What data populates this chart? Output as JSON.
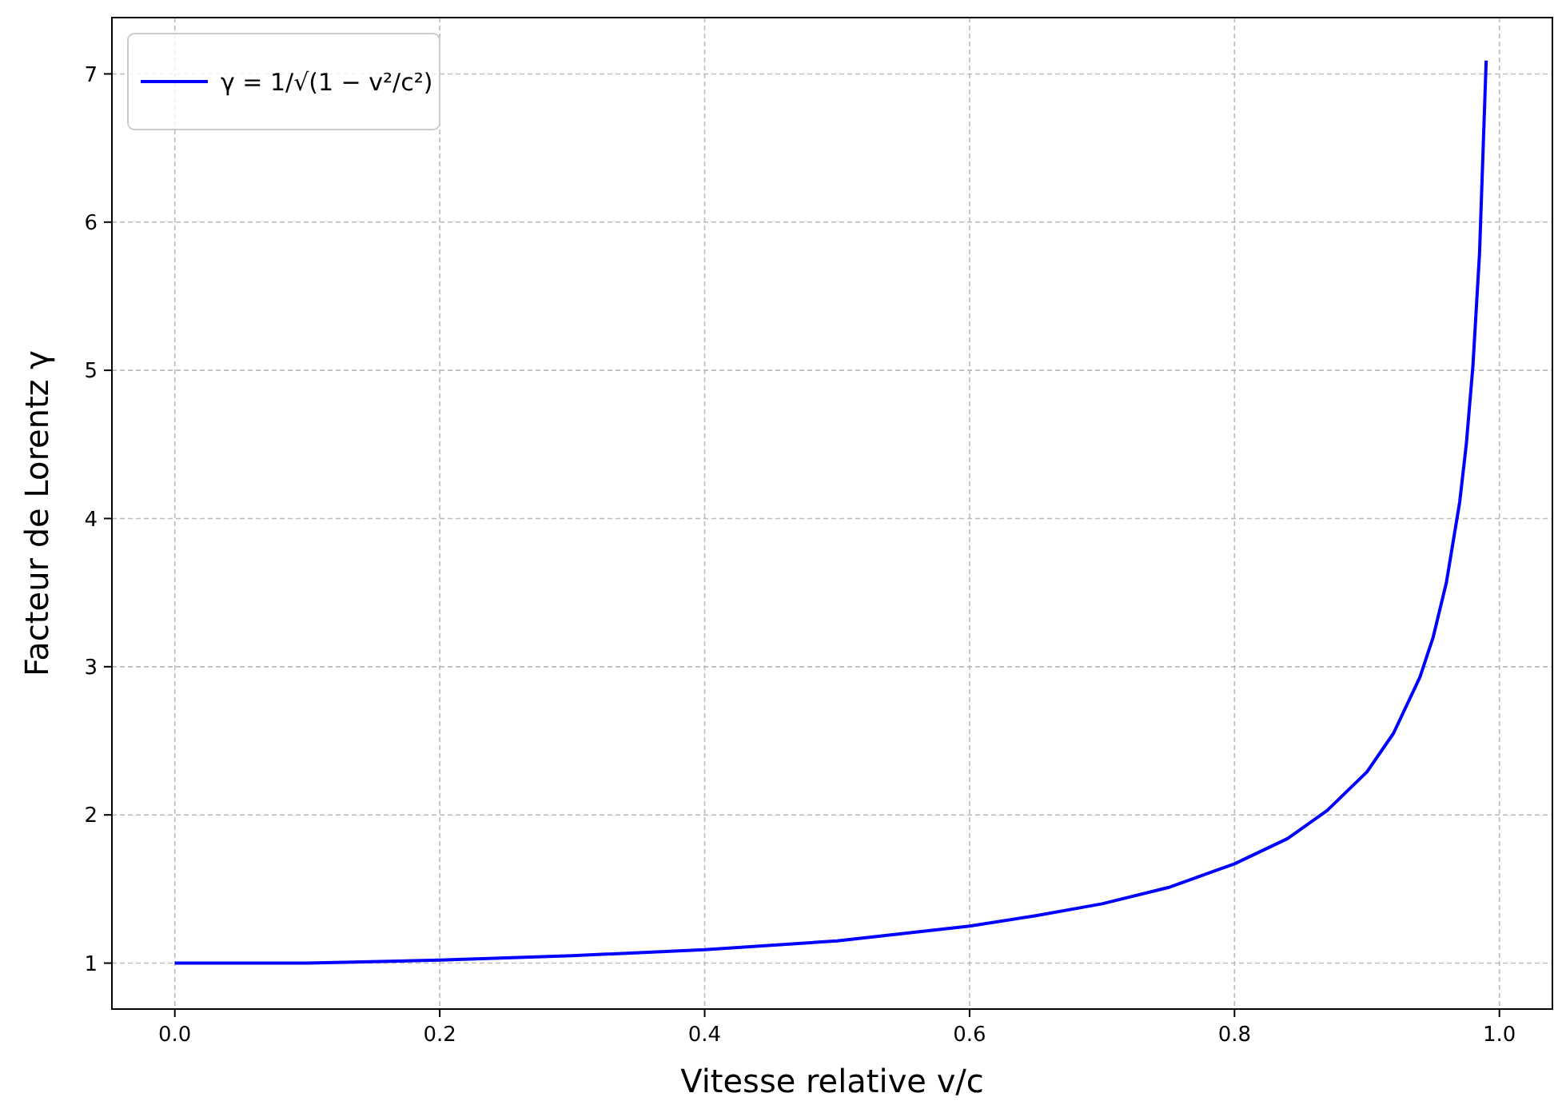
{
  "chart_data": {
    "type": "line",
    "xlabel": "Vitesse relative v/c",
    "ylabel": "Facteur de Lorentz γ",
    "x": [
      0,
      0.1,
      0.2,
      0.3,
      0.4,
      0.5,
      0.6,
      0.65,
      0.7,
      0.75,
      0.8,
      0.84,
      0.87,
      0.9,
      0.92,
      0.94,
      0.95,
      0.96,
      0.97,
      0.975,
      0.98,
      0.985,
      0.99
    ],
    "series": [
      {
        "name": "γ = 1/√(1 − v²/c²)",
        "color": "#0000ff",
        "values": [
          1,
          1.0,
          1.02,
          1.05,
          1.09,
          1.15,
          1.25,
          1.32,
          1.4,
          1.51,
          1.67,
          1.84,
          2.03,
          2.29,
          2.55,
          2.93,
          3.2,
          3.57,
          4.11,
          4.5,
          5.03,
          5.79,
          7.09
        ]
      }
    ],
    "xlim": [
      -0.0475,
      1.04
    ],
    "ylim": [
      0.69,
      7.38
    ],
    "xticks": [
      {
        "value": 0,
        "label": "0.0"
      },
      {
        "value": 0.2,
        "label": "0.2"
      },
      {
        "value": 0.4,
        "label": "0.4"
      },
      {
        "value": 0.6,
        "label": "0.6"
      },
      {
        "value": 0.8,
        "label": "0.8"
      },
      {
        "value": 1,
        "label": "1.0"
      }
    ],
    "yticks": [
      1,
      2,
      3,
      4,
      5,
      6,
      7
    ],
    "grid": true,
    "legend": "top left",
    "line_style": "solid"
  }
}
